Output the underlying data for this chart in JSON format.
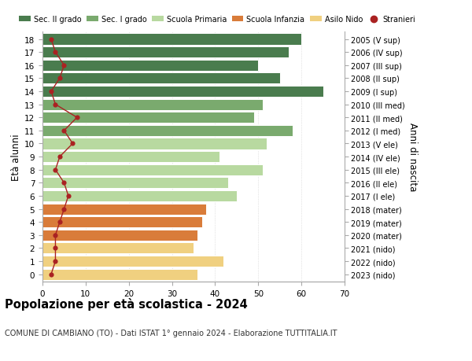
{
  "ages": [
    18,
    17,
    16,
    15,
    14,
    13,
    12,
    11,
    10,
    9,
    8,
    7,
    6,
    5,
    4,
    3,
    2,
    1,
    0
  ],
  "right_labels": [
    "2005 (V sup)",
    "2006 (IV sup)",
    "2007 (III sup)",
    "2008 (II sup)",
    "2009 (I sup)",
    "2010 (III med)",
    "2011 (II med)",
    "2012 (I med)",
    "2013 (V ele)",
    "2014 (IV ele)",
    "2015 (III ele)",
    "2016 (II ele)",
    "2017 (I ele)",
    "2018 (mater)",
    "2019 (mater)",
    "2020 (mater)",
    "2021 (nido)",
    "2022 (nido)",
    "2023 (nido)"
  ],
  "bar_values": [
    60,
    57,
    50,
    55,
    65,
    51,
    49,
    58,
    52,
    41,
    51,
    43,
    45,
    38,
    37,
    36,
    35,
    42,
    36
  ],
  "bar_colors": [
    "#4a7c4e",
    "#4a7c4e",
    "#4a7c4e",
    "#4a7c4e",
    "#4a7c4e",
    "#7aaa6e",
    "#7aaa6e",
    "#7aaa6e",
    "#b8d9a0",
    "#b8d9a0",
    "#b8d9a0",
    "#b8d9a0",
    "#b8d9a0",
    "#d97c3a",
    "#d97c3a",
    "#d97c3a",
    "#f0d080",
    "#f0d080",
    "#f0d080"
  ],
  "stranieri_values": [
    2,
    3,
    5,
    4,
    2,
    3,
    8,
    5,
    7,
    4,
    3,
    5,
    6,
    5,
    4,
    3,
    3,
    3,
    2
  ],
  "legend_labels": [
    "Sec. II grado",
    "Sec. I grado",
    "Scuola Primaria",
    "Scuola Infanzia",
    "Asilo Nido",
    "Stranieri"
  ],
  "legend_colors": [
    "#4a7c4e",
    "#7aaa6e",
    "#b8d9a0",
    "#d97c3a",
    "#f0d080",
    "#aa2222"
  ],
  "ylabel": "Età alunni",
  "right_ylabel": "Anni di nascita",
  "title": "Popolazione per età scolastica - 2024",
  "subtitle": "COMUNE DI CAMBIANO (TO) - Dati ISTAT 1° gennaio 2024 - Elaborazione TUTTITALIA.IT",
  "xlim": [
    0,
    70
  ],
  "background_color": "#ffffff",
  "bar_edge_color": "#ffffff",
  "grid_color": "#cccccc"
}
